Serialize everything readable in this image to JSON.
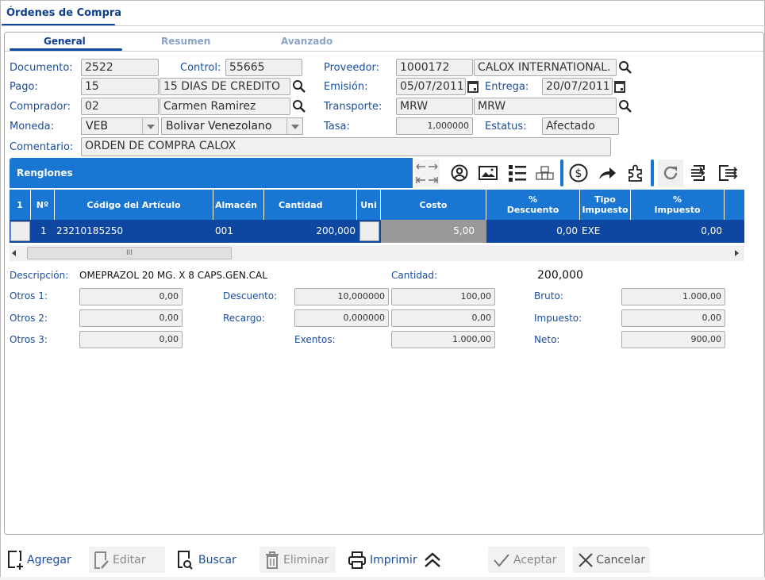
{
  "window": {
    "title": "Órdenes de Compra"
  },
  "tabs": [
    {
      "label": "General",
      "active": true
    },
    {
      "label": "Resumen"
    },
    {
      "label": "Avanzado"
    }
  ],
  "form": {
    "documento": {
      "label": "Documento:",
      "value": "2522"
    },
    "control": {
      "label": "Control:",
      "value": "55665"
    },
    "proveedor": {
      "label": "Proveedor:",
      "code": "1000172",
      "name": "CALOX INTERNATIONAL."
    },
    "pago": {
      "label": "Pago:",
      "code": "15",
      "name": "15 DIAS DE CREDITO"
    },
    "emision": {
      "label": "Emisión:",
      "value": "05/07/2011"
    },
    "entrega": {
      "label": "Entrega:",
      "value": "20/07/2011"
    },
    "comprador": {
      "label": "Comprador:",
      "code": "02",
      "name": "Carmen Ramirez"
    },
    "transporte": {
      "label": "Transporte:",
      "code": "MRW",
      "name": "MRW"
    },
    "moneda": {
      "label": "Moneda:",
      "code": "VEB",
      "name": "Bolivar Venezolano"
    },
    "tasa": {
      "label": "Tasa:",
      "value": "1,000000"
    },
    "estatus": {
      "label": "Estatus:",
      "value": "Afectado"
    },
    "comentario": {
      "label": "Comentario:",
      "value": "ORDEN DE COMPRA CALOX"
    }
  },
  "grid": {
    "title": "Renglones",
    "toolbar_icons": [
      "expand-collapse-icon",
      "user-icon",
      "image-icon",
      "list-icon",
      "boxes-icon",
      "dollar-icon",
      "share-icon",
      "puzzle-icon",
      "refresh-icon",
      "import-icon",
      "export-icon"
    ],
    "columns": [
      "1",
      "Nº",
      "Código del Artículo",
      "Almacén",
      "Cantidad",
      "Uni",
      "Costo",
      "% Descuento",
      "Tipo Impuesto",
      "% Impuesto"
    ],
    "rows": [
      {
        "n": "1",
        "codigo": "23210185250",
        "almacen": "001",
        "cantidad": "200,000",
        "costo": "5,00",
        "descuento": "0,00",
        "tipo": "EXE",
        "impuesto": "0,00"
      }
    ]
  },
  "detail": {
    "descripcion_label": "Descripción:",
    "descripcion": "OMEPRAZOL 20 MG. X 8 CAPS.GEN.CAL",
    "cantidad_label": "Cantidad:",
    "cantidad": "200,000",
    "otros1_label": "Otros 1:",
    "otros1": "0,00",
    "otros2_label": "Otros 2:",
    "otros2": "0,00",
    "otros3_label": "Otros 3:",
    "otros3": "0,00",
    "descuento_label": "Descuento:",
    "descuento_pct": "10,000000",
    "descuento": "100,00",
    "recargo_label": "Recargo:",
    "recargo_pct": "0,000000",
    "recargo": "0,00",
    "exentos_label": "Exentos:",
    "exentos": "1.000,00",
    "bruto_label": "Bruto:",
    "bruto": "1.000,00",
    "impuesto_label": "Impuesto:",
    "impuesto": "0,00",
    "neto_label": "Neto:",
    "neto": "900,00"
  },
  "actions": {
    "agregar": "Agregar",
    "editar": "Editar",
    "buscar": "Buscar",
    "eliminar": "Eliminar",
    "imprimir": "Imprimir",
    "aceptar": "Aceptar",
    "cancelar": "Cancelar"
  },
  "colors": {
    "accent": "#1976d2",
    "selected_row": "#0d47a1",
    "label": "#1a4d9c"
  }
}
